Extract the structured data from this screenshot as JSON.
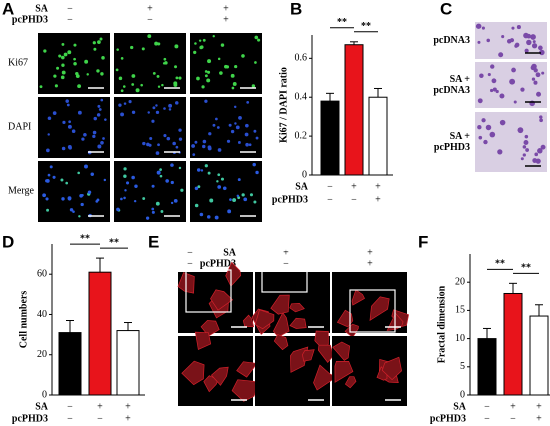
{
  "panel_labels": [
    "A",
    "B",
    "C",
    "D",
    "E",
    "F"
  ],
  "panel_a": {
    "conditions": [
      {
        "name": "SA",
        "levels": [
          "−",
          "+",
          "+"
        ]
      },
      {
        "name": "pcPHD3",
        "levels": [
          "−",
          "−",
          "+"
        ]
      }
    ],
    "rows": [
      "Ki67",
      "DAPI",
      "Merge"
    ]
  },
  "panel_c": {
    "rows": [
      "pcDNA3",
      "SA +\npcDNA3",
      "SA +\npcPHD3"
    ]
  },
  "panel_e": {
    "conditions": [
      {
        "name": "SA",
        "levels": [
          "−",
          "+",
          "+"
        ]
      },
      {
        "name": "pcPHD3",
        "levels": [
          "−",
          "−",
          "+"
        ]
      }
    ]
  },
  "chart_data": [
    {
      "type": "bar",
      "ylabel": "Ki67 / DAPI ratio",
      "values": [
        0.38,
        0.67,
        0.4
      ],
      "errors": [
        0.04,
        0.015,
        0.045
      ],
      "colors": [
        "#000000",
        "#e8141b",
        "#ffffff"
      ],
      "ylim": [
        0,
        0.72
      ],
      "yticks": [
        0,
        0.2,
        0.4,
        0.6
      ],
      "conditions": [
        {
          "name": "SA",
          "levels": [
            "−",
            "+",
            "+"
          ]
        },
        {
          "name": "pcPHD3",
          "levels": [
            "−",
            "−",
            "+"
          ]
        }
      ],
      "significance": [
        "**",
        "**"
      ]
    },
    {
      "type": "bar",
      "ylabel": "Cell numbers",
      "values": [
        31,
        61,
        32
      ],
      "errors": [
        6,
        7,
        4
      ],
      "colors": [
        "#000000",
        "#e8141b",
        "#ffffff"
      ],
      "ylim": [
        0,
        75
      ],
      "yticks": [
        0,
        20,
        40,
        60
      ],
      "conditions": [
        {
          "name": "SA",
          "levels": [
            "−",
            "+",
            "+"
          ]
        },
        {
          "name": "pcPHD3",
          "levels": [
            "−",
            "−",
            "+"
          ]
        }
      ],
      "significance": [
        "**",
        "**"
      ]
    },
    {
      "type": "bar",
      "ylabel": "Fractal dimension",
      "values": [
        10,
        18,
        14
      ],
      "errors": [
        1.8,
        1.8,
        2
      ],
      "colors": [
        "#000000",
        "#e8141b",
        "#ffffff"
      ],
      "ylim": [
        0,
        25
      ],
      "yticks": [
        0,
        5,
        10,
        15,
        20
      ],
      "conditions": [
        {
          "name": "SA",
          "levels": [
            "−",
            "+",
            "+"
          ]
        },
        {
          "name": "pcPHD3",
          "levels": [
            "−",
            "−",
            "+"
          ]
        }
      ],
      "significance": [
        "**",
        "**"
      ]
    }
  ]
}
